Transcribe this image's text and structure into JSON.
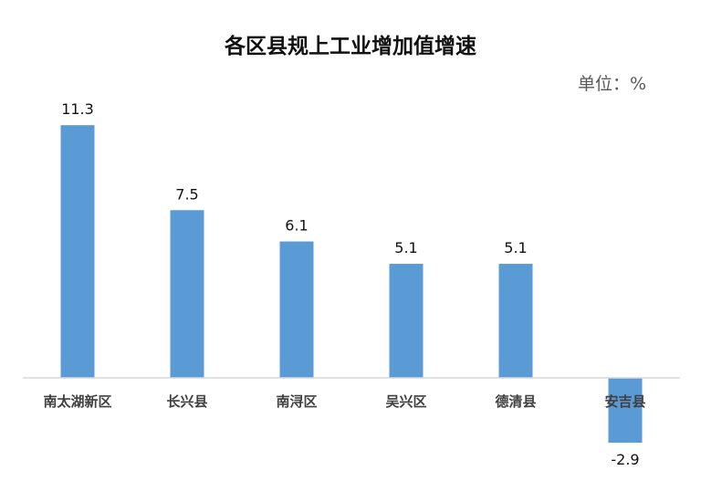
{
  "chart_data": {
    "type": "bar",
    "title": "各区县规上工业增加值增速",
    "unit_label": "单位：%",
    "xlabel": "",
    "ylabel": "",
    "categories": [
      "南太湖新区",
      "长兴县",
      "南浔区",
      "吴兴区",
      "德清县",
      "安吉县"
    ],
    "values": [
      11.3,
      7.5,
      6.1,
      5.1,
      5.1,
      -2.9
    ],
    "value_labels": [
      "11.3",
      "7.5",
      "6.1",
      "5.1",
      "5.1",
      "-2.9"
    ],
    "ylim": [
      -3,
      11.3
    ],
    "grid": false,
    "legend": "none",
    "bar_color": "#5B9BD5",
    "axis_color": "#d9d9d9"
  }
}
